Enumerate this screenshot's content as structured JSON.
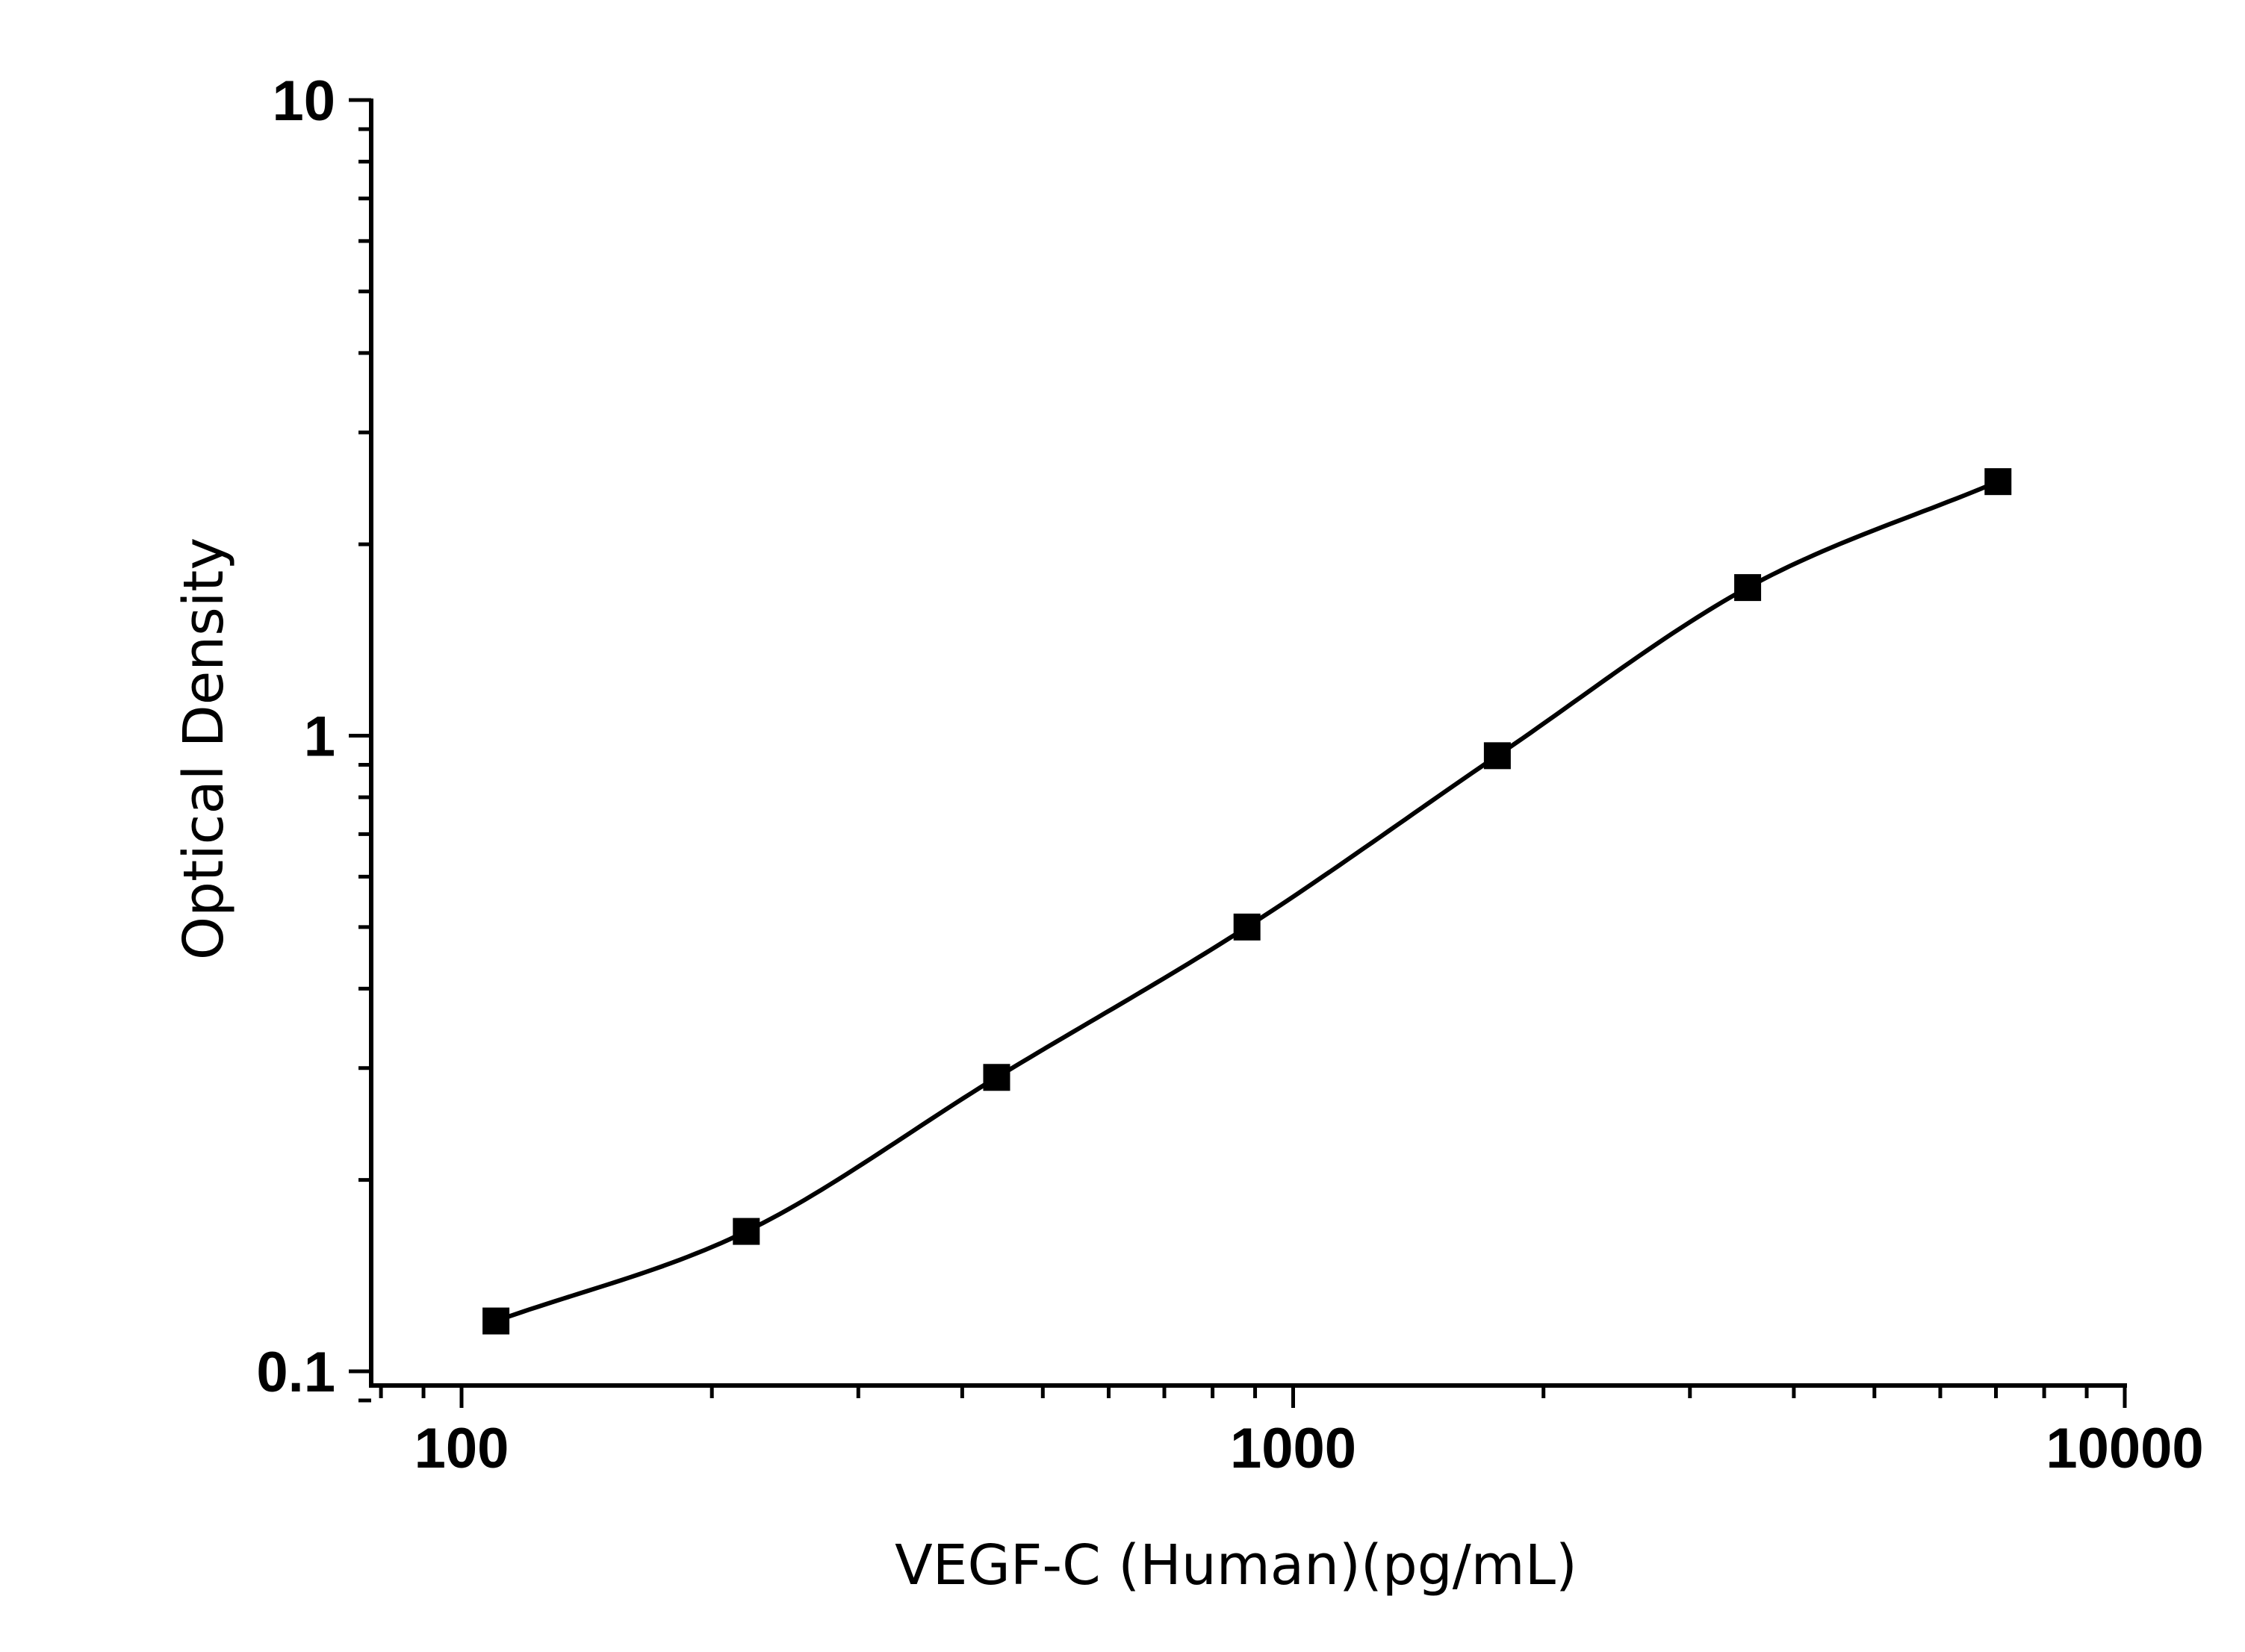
{
  "chart_data": {
    "type": "scatter",
    "title": "",
    "xlabel": "VEGF-C (Human)(pg/mL)",
    "ylabel": "Optical Density",
    "x_scale": "log",
    "y_scale": "log",
    "xlim": [
      78,
      10000
    ],
    "ylim": [
      0.085,
      10
    ],
    "x_ticks": [
      {
        "value": 100,
        "label": "100"
      },
      {
        "value": 1000,
        "label": "1000"
      },
      {
        "value": 10000,
        "label": "10000"
      }
    ],
    "y_ticks": [
      {
        "value": 0.1,
        "label": "0.1"
      },
      {
        "value": 1,
        "label": "1"
      },
      {
        "value": 10,
        "label": "10"
      }
    ],
    "grid": false,
    "legend": "none",
    "series": [
      {
        "marker": "square",
        "color": "#000000",
        "x": [
          110,
          220,
          440,
          880,
          1760,
          3520,
          7040
        ],
        "y": [
          0.12,
          0.166,
          0.29,
          0.5,
          0.93,
          1.71,
          2.51
        ]
      }
    ],
    "fit_curve": {
      "color": "#000000",
      "x_range": [
        110,
        7040
      ]
    }
  }
}
